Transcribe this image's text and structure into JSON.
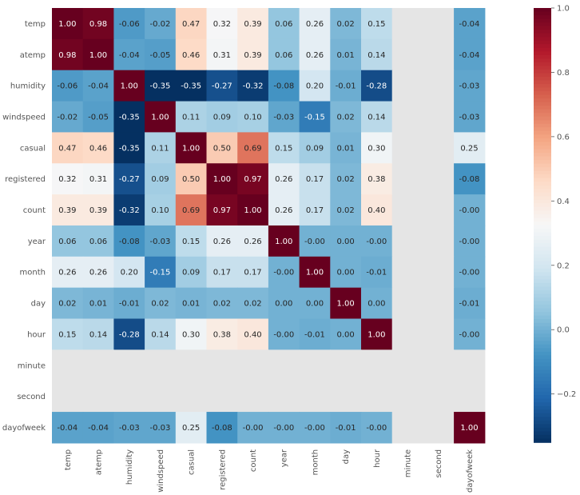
{
  "chart_data": {
    "type": "heatmap",
    "title": "",
    "xlabel": "",
    "ylabel": "",
    "labels": [
      "temp",
      "atemp",
      "humidity",
      "windspeed",
      "casual",
      "registered",
      "count",
      "year",
      "month",
      "day",
      "hour",
      "minute",
      "second",
      "dayofweek"
    ],
    "values": [
      [
        1.0,
        0.98,
        -0.06,
        -0.02,
        0.47,
        0.32,
        0.39,
        0.06,
        0.26,
        0.02,
        0.15,
        null,
        null,
        -0.04
      ],
      [
        0.98,
        1.0,
        -0.04,
        -0.05,
        0.46,
        0.31,
        0.39,
        0.06,
        0.26,
        0.01,
        0.14,
        null,
        null,
        -0.04
      ],
      [
        -0.06,
        -0.04,
        1.0,
        -0.35,
        -0.35,
        -0.27,
        -0.32,
        -0.08,
        0.2,
        -0.01,
        -0.28,
        null,
        null,
        -0.03
      ],
      [
        -0.02,
        -0.05,
        -0.35,
        1.0,
        0.11,
        0.09,
        0.1,
        -0.03,
        -0.15,
        0.02,
        0.14,
        null,
        null,
        -0.03
      ],
      [
        0.47,
        0.46,
        -0.35,
        0.11,
        1.0,
        0.5,
        0.69,
        0.15,
        0.09,
        0.01,
        0.3,
        null,
        null,
        0.25
      ],
      [
        0.32,
        0.31,
        -0.27,
        0.09,
        0.5,
        1.0,
        0.97,
        0.26,
        0.17,
        0.02,
        0.38,
        null,
        null,
        -0.08
      ],
      [
        0.39,
        0.39,
        -0.32,
        0.1,
        0.69,
        0.97,
        1.0,
        0.26,
        0.17,
        0.02,
        0.4,
        null,
        null,
        -0.0
      ],
      [
        0.06,
        0.06,
        -0.08,
        -0.03,
        0.15,
        0.26,
        0.26,
        1.0,
        -0.0,
        0.0,
        -0.0,
        null,
        null,
        -0.0
      ],
      [
        0.26,
        0.26,
        0.2,
        -0.15,
        0.09,
        0.17,
        0.17,
        -0.0,
        1.0,
        0.0,
        -0.01,
        null,
        null,
        -0.0
      ],
      [
        0.02,
        0.01,
        -0.01,
        0.02,
        0.01,
        0.02,
        0.02,
        0.0,
        0.0,
        1.0,
        0.0,
        null,
        null,
        -0.01
      ],
      [
        0.15,
        0.14,
        -0.28,
        0.14,
        0.3,
        0.38,
        0.4,
        -0.0,
        -0.01,
        0.0,
        1.0,
        null,
        null,
        -0.0
      ],
      [
        null,
        null,
        null,
        null,
        null,
        null,
        null,
        null,
        null,
        null,
        null,
        null,
        null,
        null
      ],
      [
        null,
        null,
        null,
        null,
        null,
        null,
        null,
        null,
        null,
        null,
        null,
        null,
        null,
        null
      ],
      [
        -0.04,
        -0.04,
        -0.03,
        -0.03,
        0.25,
        -0.08,
        -0.0,
        -0.0,
        -0.0,
        -0.01,
        -0.0,
        null,
        null,
        1.0
      ]
    ],
    "colormap": "RdBu_r",
    "vmin": -0.35,
    "vmax": 1.0,
    "colorbar_ticks": [
      1.0,
      0.8,
      0.6,
      0.4,
      0.2,
      0.0,
      -0.2
    ],
    "colorbar_tick_labels": [
      "1.0",
      "0.8",
      "0.6",
      "0.4",
      "0.2",
      "0.0",
      "−0.2"
    ],
    "missing_color": "#e5e5e5",
    "annotation_format": "2 decimals"
  }
}
